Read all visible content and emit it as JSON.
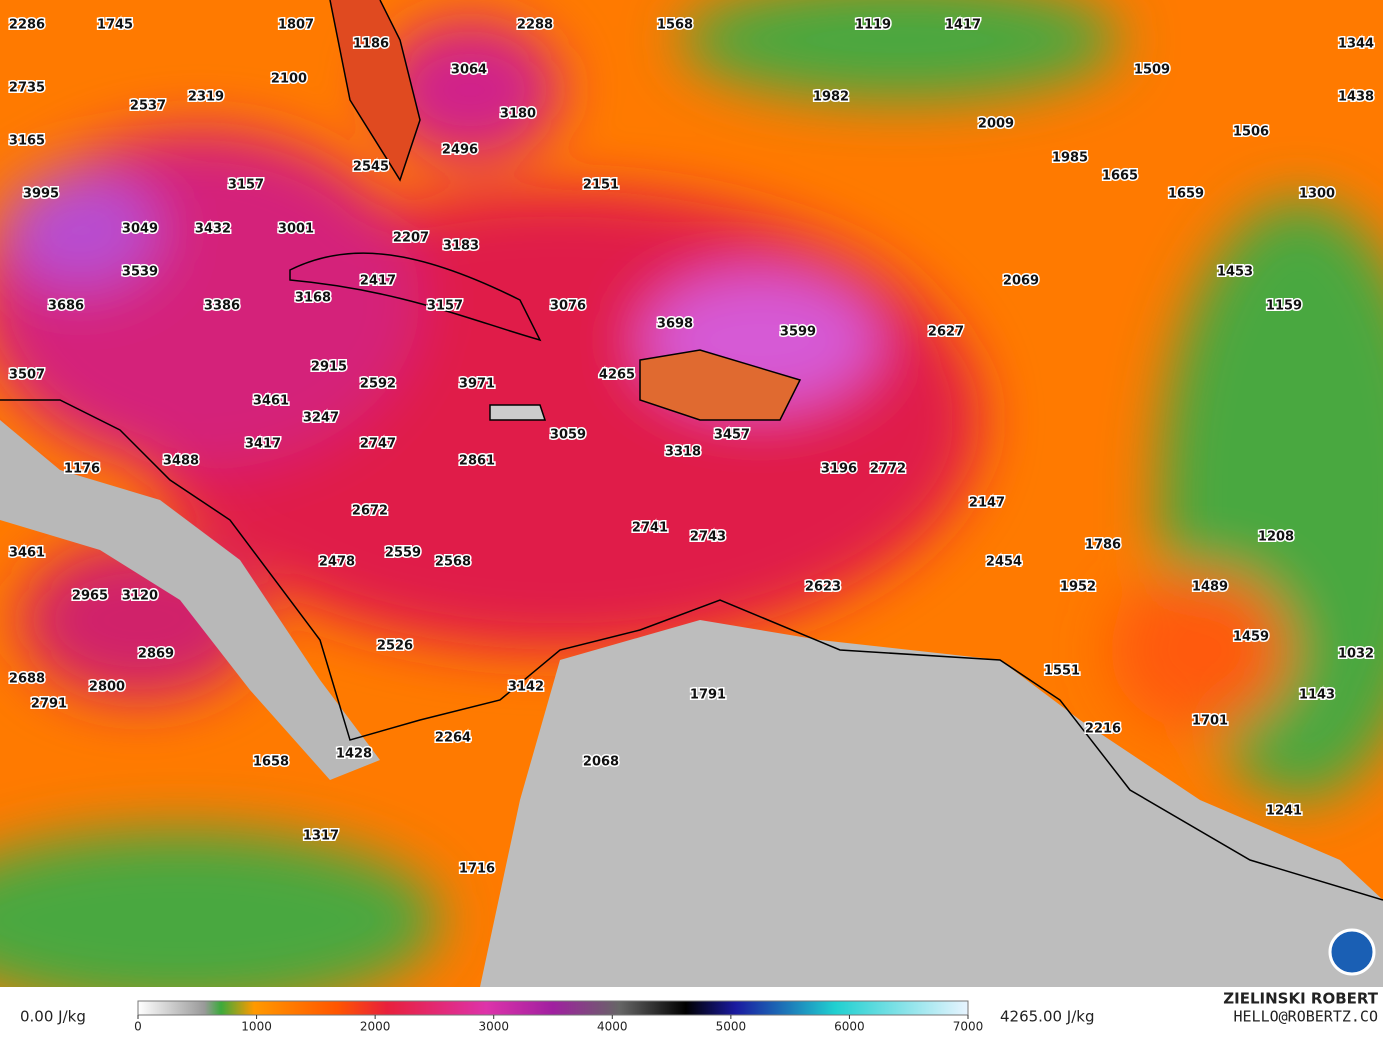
{
  "map": {
    "labels": [
      2286,
      1745,
      1807,
      2288,
      1568,
      1119,
      1417,
      1344,
      1186,
      3064,
      1509,
      2735,
      2100,
      1982,
      1438,
      2537,
      2319,
      3180,
      2009,
      1506,
      3165,
      2496,
      1985,
      2545,
      1665,
      3157,
      2151,
      1659,
      1300,
      3995,
      3049,
      3432,
      3001,
      2207,
      3183,
      3539,
      1453,
      2417,
      2069,
      3168,
      3686,
      3386,
      3157,
      3076,
      1159,
      3698,
      3599,
      2627,
      2915,
      3507,
      4265,
      2592,
      3971,
      3461,
      3247,
      3059,
      3457,
      3417,
      2747,
      3318,
      3488,
      2861,
      1176,
      3196,
      2772,
      2147,
      2672,
      2741,
      2743,
      1208,
      1786,
      3461,
      2478,
      2559,
      2568,
      2454,
      2623,
      1952,
      1489,
      2965,
      3120,
      1459,
      2526,
      2869,
      1032,
      1551,
      2688,
      2800,
      3142,
      1791,
      1143,
      2791,
      1701,
      2216,
      2264,
      1428,
      2068,
      1658,
      1241,
      1317,
      1716
    ]
  },
  "legend": {
    "min_label": "0.00 J/kg",
    "max_label": "4265.00 J/kg",
    "lim": [
      0,
      7000
    ],
    "ticks": [
      0,
      1000,
      2000,
      3000,
      4000,
      5000,
      6000,
      7000
    ]
  },
  "credit": {
    "name": "ZIELINSKI ROBERT",
    "email": "HELLO@ROBERTZ.CO"
  }
}
